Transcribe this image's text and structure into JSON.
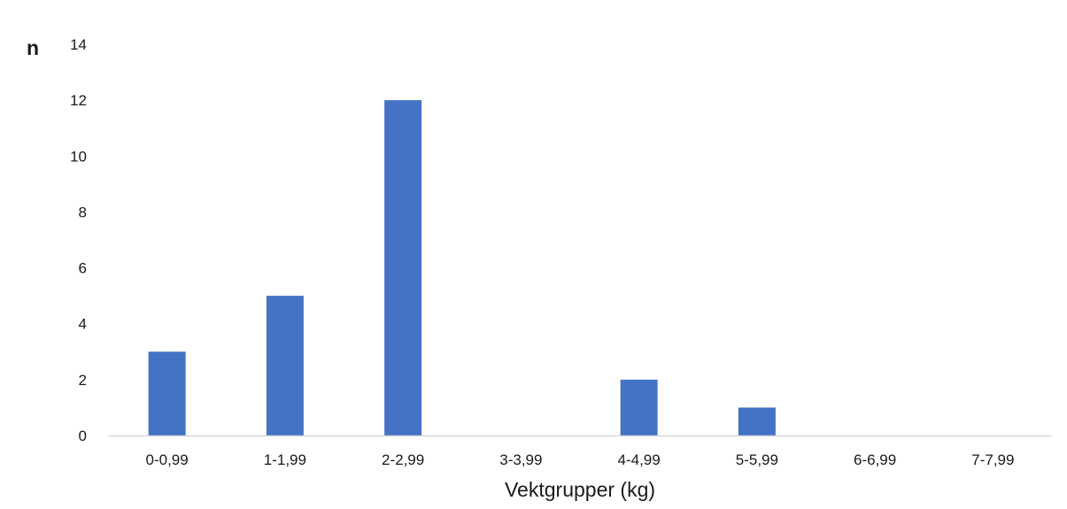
{
  "chart_data": {
    "type": "bar",
    "title": "",
    "xlabel": "Vektgrupper (kg)",
    "ylabel": "n",
    "categories": [
      "0-0,99",
      "1-1,99",
      "2-2,99",
      "3-3,99",
      "4-4,99",
      "5-5,99",
      "6-6,99",
      "7-7,99"
    ],
    "values": [
      3,
      5,
      12,
      0,
      2,
      1,
      0,
      0
    ],
    "ylim": [
      0,
      14
    ],
    "yticks": [
      "0",
      "2",
      "4",
      "6",
      "8",
      "10",
      "12",
      "14"
    ],
    "bar_color": "#4472C4",
    "axis_color": "#d9d9d9",
    "grid": false,
    "legend": "none"
  }
}
